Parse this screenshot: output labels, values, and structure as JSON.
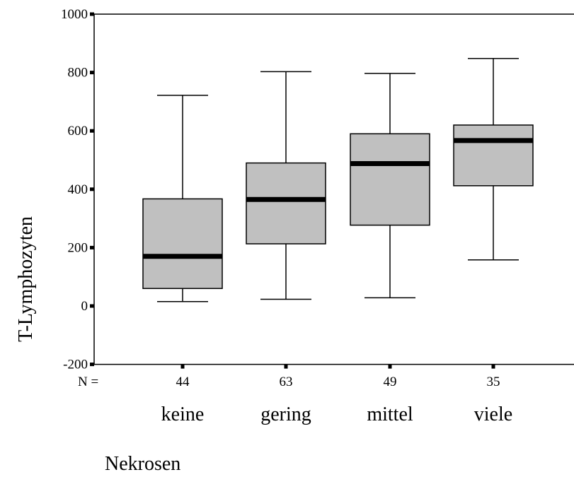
{
  "chart_data": {
    "type": "boxplot",
    "ylabel": "T-Lymphozyten",
    "xlabel": "Nekrosen",
    "n_prefix": "N =",
    "ylim": [
      -200,
      1000
    ],
    "yticks": [
      -200,
      0,
      200,
      400,
      600,
      800,
      1000
    ],
    "categories": [
      "keine",
      "gering",
      "mittel",
      "viele"
    ],
    "n_values": [
      "44",
      "63",
      "49",
      "35"
    ],
    "boxes": [
      {
        "min": 15,
        "q1": 60,
        "median": 170,
        "q3": 367,
        "max": 722
      },
      {
        "min": 23,
        "q1": 213,
        "median": 365,
        "q3": 490,
        "max": 803
      },
      {
        "min": 28,
        "q1": 277,
        "median": 488,
        "q3": 590,
        "max": 797
      },
      {
        "min": 158,
        "q1": 412,
        "median": 567,
        "q3": 620,
        "max": 848
      }
    ],
    "colors": {
      "box_fill": "#c0c0c0",
      "line": "#000000"
    }
  }
}
